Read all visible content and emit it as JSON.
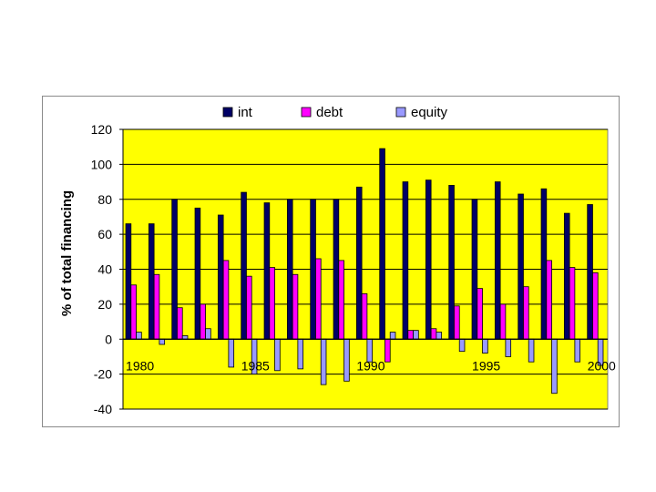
{
  "chart_data": {
    "type": "bar",
    "title": "",
    "xlabel": "",
    "ylabel": "% of total financing",
    "ylim": [
      -40,
      120
    ],
    "yticks": [
      -40,
      -20,
      0,
      20,
      40,
      60,
      80,
      100,
      120
    ],
    "grid": true,
    "legend_position": "top",
    "plot_background": "#ffff00",
    "categories": [
      "1980",
      "1981",
      "1982",
      "1983",
      "1984",
      "1985",
      "1986",
      "1987",
      "1988",
      "1989",
      "1990",
      "1991",
      "1992",
      "1993",
      "1994",
      "1995",
      "1996",
      "1997",
      "1998",
      "1999",
      "2000"
    ],
    "x_tick_labels": [
      "1980",
      "1985",
      "1990",
      "1995",
      "2000"
    ],
    "series": [
      {
        "name": "int",
        "color": "#000066",
        "values": [
          66,
          66,
          80,
          75,
          71,
          84,
          78,
          80,
          80,
          80,
          87,
          109,
          90,
          91,
          88,
          80,
          90,
          83,
          86,
          72,
          77
        ]
      },
      {
        "name": "debt",
        "color": "#ff00ff",
        "values": [
          31,
          37,
          18,
          20,
          45,
          36,
          41,
          37,
          46,
          45,
          26,
          -13,
          5,
          6,
          19,
          29,
          20,
          30,
          45,
          41,
          38
        ]
      },
      {
        "name": "equity",
        "color": "#9999ff",
        "values": [
          4,
          -3,
          2,
          6,
          -16,
          -20,
          -18,
          -17,
          -26,
          -24,
          -13,
          4,
          5,
          4,
          -7,
          -8,
          -10,
          -13,
          -31,
          -13,
          -15
        ]
      }
    ]
  }
}
